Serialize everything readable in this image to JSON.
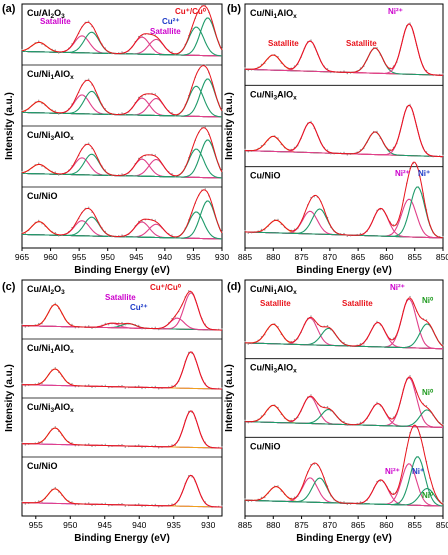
{
  "figure": {
    "panels": [
      {
        "label": "(a)",
        "xlabel": "Binding Energy (eV)",
        "ylabel": "Intensity (a.u.)",
        "xticks": [
          "965",
          "960",
          "955",
          "950",
          "945",
          "940",
          "935",
          "930"
        ],
        "samples": [
          {
            "name": "Cu/Al",
            "sub1": "2",
            "mid": "O",
            "sub2": "3"
          },
          {
            "name": "Cu/Ni",
            "sub1": "1",
            "mid": "AlO",
            "sub2": "x"
          },
          {
            "name": "Cu/Ni",
            "sub1": "3",
            "mid": "AlO",
            "sub2": "x"
          },
          {
            "name": "Cu/NiO",
            "sub1": "",
            "mid": "",
            "sub2": ""
          }
        ],
        "annotations": [
          {
            "text": "Satallite",
            "color": "#cc00cc"
          },
          {
            "text": "Satallite",
            "color": "#cc00cc"
          },
          {
            "text": "Cu⁺/Cu⁰",
            "color": "#e8141c"
          },
          {
            "text": "Cu²⁺",
            "color": "#1f3cc8"
          }
        ]
      },
      {
        "label": "(b)",
        "xlabel": "Binding Energy (eV)",
        "ylabel": "Intensity (a.u.)",
        "xticks": [
          "885",
          "880",
          "875",
          "870",
          "865",
          "860",
          "855",
          "850"
        ],
        "samples": [
          {
            "name": "Cu/Ni",
            "sub1": "1",
            "mid": "AlO",
            "sub2": "x"
          },
          {
            "name": "Cu/Ni",
            "sub1": "3",
            "mid": "AlO",
            "sub2": "x"
          },
          {
            "name": "Cu/NiO",
            "sub1": "",
            "mid": "",
            "sub2": ""
          }
        ],
        "annotations": [
          {
            "text": "Satallite",
            "color": "#e8141c"
          },
          {
            "text": "Satallite",
            "color": "#e8141c"
          },
          {
            "text": "Ni²⁺",
            "color": "#cc00cc"
          },
          {
            "text": "Ni²⁺",
            "color": "#cc00cc"
          },
          {
            "text": "Ni⁺",
            "color": "#1f3cc8"
          }
        ]
      },
      {
        "label": "(c)",
        "xlabel": "Binding Energy (eV)",
        "ylabel": "Intensity (a.u.)",
        "xticks": [
          "955",
          "950",
          "945",
          "940",
          "935",
          "930"
        ],
        "samples": [
          {
            "name": "Cu/Al",
            "sub1": "2",
            "mid": "O",
            "sub2": "3"
          },
          {
            "name": "Cu/Ni",
            "sub1": "1",
            "mid": "AlO",
            "sub2": "x"
          },
          {
            "name": "Cu/Ni",
            "sub1": "3",
            "mid": "AlO",
            "sub2": "x"
          },
          {
            "name": "Cu/NiO",
            "sub1": "",
            "mid": "",
            "sub2": ""
          }
        ],
        "annotations": [
          {
            "text": "Satallite",
            "color": "#cc00cc"
          },
          {
            "text": "Cu⁺/Cu⁰",
            "color": "#e8141c"
          },
          {
            "text": "Cu²⁺",
            "color": "#1f3cc8"
          }
        ]
      },
      {
        "label": "(d)",
        "xlabel": "Binding Energy (eV)",
        "ylabel": "Intensity (a.u.)",
        "xticks": [
          "885",
          "880",
          "875",
          "870",
          "865",
          "860",
          "855",
          "850"
        ],
        "samples": [
          {
            "name": "Cu/Ni",
            "sub1": "1",
            "mid": "AlO",
            "sub2": "x"
          },
          {
            "name": "Cu/Ni",
            "sub1": "3",
            "mid": "AlO",
            "sub2": "x"
          },
          {
            "name": "Cu/NiO",
            "sub1": "",
            "mid": "",
            "sub2": ""
          }
        ],
        "annotations": [
          {
            "text": "Satallite",
            "color": "#e8141c"
          },
          {
            "text": "Satallite",
            "color": "#e8141c"
          },
          {
            "text": "Ni²⁺",
            "color": "#cc00cc"
          },
          {
            "text": "Ni⁰",
            "color": "#1f9a1f"
          },
          {
            "text": "Ni⁰",
            "color": "#1f9a1f"
          },
          {
            "text": "Ni²⁺",
            "color": "#cc00cc"
          },
          {
            "text": "Ni⁺",
            "color": "#1f3cc8"
          },
          {
            "text": "Ni⁰",
            "color": "#1f9a1f"
          }
        ]
      }
    ]
  },
  "colors": {
    "data_points": "#9a9a9a",
    "envelope": "#e8141c",
    "peak_green": "#1f9a6a",
    "peak_pink": "#e0408a",
    "peak_orange": "#f0a020",
    "peak_blue": "#1f3cc8",
    "background": "#9b1fd0"
  },
  "chart_data": [
    {
      "type": "line",
      "title": "(a)",
      "xlabel": "Binding Energy (eV)",
      "ylabel": "Intensity (a.u.)",
      "xlim": [
        965,
        930
      ],
      "series_names_from_labels": [
        "Cu/Al2O3",
        "Cu/Ni1AlOx",
        "Cu/Ni3AlOx",
        "Cu/NiO"
      ],
      "peaks": [
        {
          "sample": "Cu/Al2O3",
          "centers": [
            962.0,
            954.5,
            952.8,
            944.0,
            941.5,
            934.5,
            932.5
          ],
          "heights": [
            0.25,
            0.45,
            0.55,
            0.45,
            0.4,
            0.75,
            1.0
          ]
        },
        {
          "sample": "Cu/Ni1AlOx",
          "centers": [
            962.0,
            954.5,
            952.8,
            944.0,
            941.5,
            934.5,
            932.5
          ],
          "heights": [
            0.3,
            0.5,
            0.6,
            0.45,
            0.45,
            0.8,
            1.0
          ]
        },
        {
          "sample": "Cu/Ni3AlOx",
          "centers": [
            962.0,
            954.5,
            952.8,
            944.0,
            941.5,
            934.5,
            932.5
          ],
          "heights": [
            0.25,
            0.45,
            0.55,
            0.45,
            0.45,
            0.75,
            1.0
          ]
        },
        {
          "sample": "Cu/NiO",
          "centers": [
            962.0,
            954.5,
            952.8,
            944.0,
            941.5,
            934.5,
            932.5
          ],
          "heights": [
            0.35,
            0.4,
            0.5,
            0.4,
            0.35,
            0.7,
            1.0
          ]
        }
      ]
    },
    {
      "type": "line",
      "title": "(b)",
      "xlabel": "Binding Energy (eV)",
      "ylabel": "Intensity (a.u.)",
      "xlim": [
        885,
        850
      ],
      "series_names_from_labels": [
        "Cu/Ni1AlOx",
        "Cu/Ni3AlOx",
        "Cu/NiO"
      ],
      "peaks": [
        {
          "sample": "Cu/Ni1AlOx",
          "centers": [
            880.0,
            873.5,
            862.0,
            856.0
          ],
          "heights": [
            0.3,
            0.6,
            0.5,
            1.0
          ]
        },
        {
          "sample": "Cu/Ni3AlOx",
          "centers": [
            880.0,
            873.5,
            862.0,
            856.0
          ],
          "heights": [
            0.3,
            0.6,
            0.45,
            1.0
          ]
        },
        {
          "sample": "Cu/NiO",
          "centers": [
            879.5,
            873.5,
            871.8,
            861.0,
            856.0,
            854.5
          ],
          "heights": [
            0.25,
            0.45,
            0.5,
            0.55,
            0.75,
            1.0
          ]
        }
      ]
    },
    {
      "type": "line",
      "title": "(c)",
      "xlabel": "Binding Energy (eV)",
      "ylabel": "Intensity (a.u.)",
      "xlim": [
        957,
        928
      ],
      "series_names_from_labels": [
        "Cu/Al2O3",
        "Cu/Ni1AlOx",
        "Cu/Ni3AlOx",
        "Cu/NiO"
      ],
      "peaks": [
        {
          "sample": "Cu/Al2O3",
          "centers": [
            952.2,
            944.0,
            941.5,
            934.5,
            932.5
          ],
          "heights": [
            0.6,
            0.12,
            0.12,
            0.3,
            1.0
          ]
        },
        {
          "sample": "Cu/Ni1AlOx",
          "centers": [
            952.2,
            932.5
          ],
          "heights": [
            0.45,
            1.0
          ]
        },
        {
          "sample": "Cu/Ni3AlOx",
          "centers": [
            952.2,
            932.5
          ],
          "heights": [
            0.45,
            1.0
          ]
        },
        {
          "sample": "Cu/NiO",
          "centers": [
            952.2,
            932.5
          ],
          "heights": [
            0.4,
            0.85
          ]
        }
      ]
    },
    {
      "type": "line",
      "title": "(d)",
      "xlabel": "Binding Energy (eV)",
      "ylabel": "Intensity (a.u.)",
      "xlim": [
        885,
        850
      ],
      "series_names_from_labels": [
        "Cu/Ni1AlOx",
        "Cu/Ni3AlOx",
        "Cu/NiO"
      ],
      "peaks": [
        {
          "sample": "Cu/Ni1AlOx",
          "centers": [
            880.0,
            873.5,
            870.2,
            861.5,
            856.0,
            852.8
          ],
          "heights": [
            0.4,
            0.55,
            0.35,
            0.5,
            1.0,
            0.5
          ]
        },
        {
          "sample": "Cu/Ni3AlOx",
          "centers": [
            880.0,
            873.5,
            870.2,
            861.5,
            856.0,
            852.8
          ],
          "heights": [
            0.35,
            0.55,
            0.3,
            0.45,
            1.0,
            0.35
          ]
        },
        {
          "sample": "Cu/NiO",
          "centers": [
            879.5,
            873.5,
            871.8,
            861.0,
            856.0,
            854.5,
            852.8
          ],
          "heights": [
            0.3,
            0.5,
            0.5,
            0.5,
            0.85,
            1.0,
            0.35
          ]
        }
      ]
    }
  ]
}
